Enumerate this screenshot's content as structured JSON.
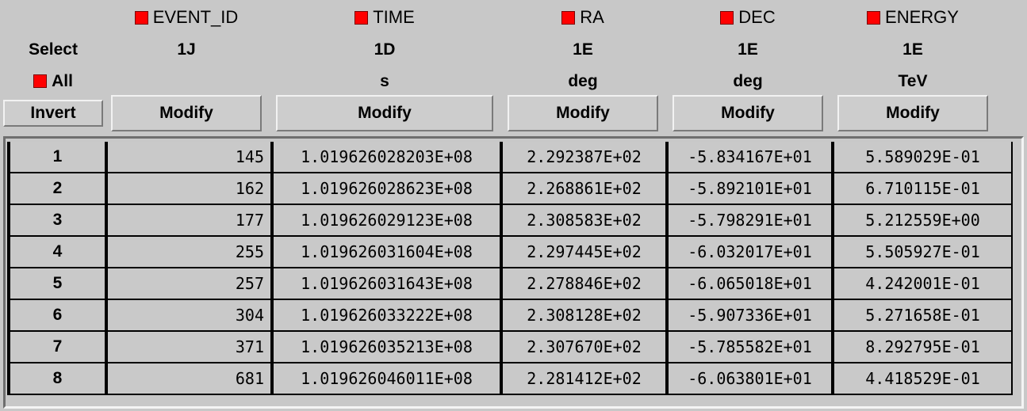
{
  "header": {
    "select_label": "Select",
    "all_label": "All",
    "invert_label": "Invert"
  },
  "colors": {
    "checkbox_checked": "#ff0000",
    "background": "#c8c8c8"
  },
  "columns": [
    {
      "name": "EVENT_ID",
      "format": "1J",
      "unit": "",
      "modify_label": "Modify",
      "selected": true
    },
    {
      "name": "TIME",
      "format": "1D",
      "unit": "s",
      "modify_label": "Modify",
      "selected": true
    },
    {
      "name": "RA",
      "format": "1E",
      "unit": "deg",
      "modify_label": "Modify",
      "selected": true
    },
    {
      "name": "DEC",
      "format": "1E",
      "unit": "deg",
      "modify_label": "Modify",
      "selected": true
    },
    {
      "name": "ENERGY",
      "format": "1E",
      "unit": "TeV",
      "modify_label": "Modify",
      "selected": true
    }
  ],
  "rows": [
    {
      "num": "1",
      "cells": [
        "145",
        "1.019626028203E+08",
        "2.292387E+02",
        "-5.834167E+01",
        "5.589029E-01"
      ]
    },
    {
      "num": "2",
      "cells": [
        "162",
        "1.019626028623E+08",
        "2.268861E+02",
        "-5.892101E+01",
        "6.710115E-01"
      ]
    },
    {
      "num": "3",
      "cells": [
        "177",
        "1.019626029123E+08",
        "2.308583E+02",
        "-5.798291E+01",
        "5.212559E+00"
      ]
    },
    {
      "num": "4",
      "cells": [
        "255",
        "1.019626031604E+08",
        "2.297445E+02",
        "-6.032017E+01",
        "5.505927E-01"
      ]
    },
    {
      "num": "5",
      "cells": [
        "257",
        "1.019626031643E+08",
        "2.278846E+02",
        "-6.065018E+01",
        "4.242001E-01"
      ]
    },
    {
      "num": "6",
      "cells": [
        "304",
        "1.019626033222E+08",
        "2.308128E+02",
        "-5.907336E+01",
        "5.271658E-01"
      ]
    },
    {
      "num": "7",
      "cells": [
        "371",
        "1.019626035213E+08",
        "2.307670E+02",
        "-5.785582E+01",
        "8.292795E-01"
      ]
    },
    {
      "num": "8",
      "cells": [
        "681",
        "1.019626046011E+08",
        "2.281412E+02",
        "-6.063801E+01",
        "4.418529E-01"
      ]
    }
  ]
}
